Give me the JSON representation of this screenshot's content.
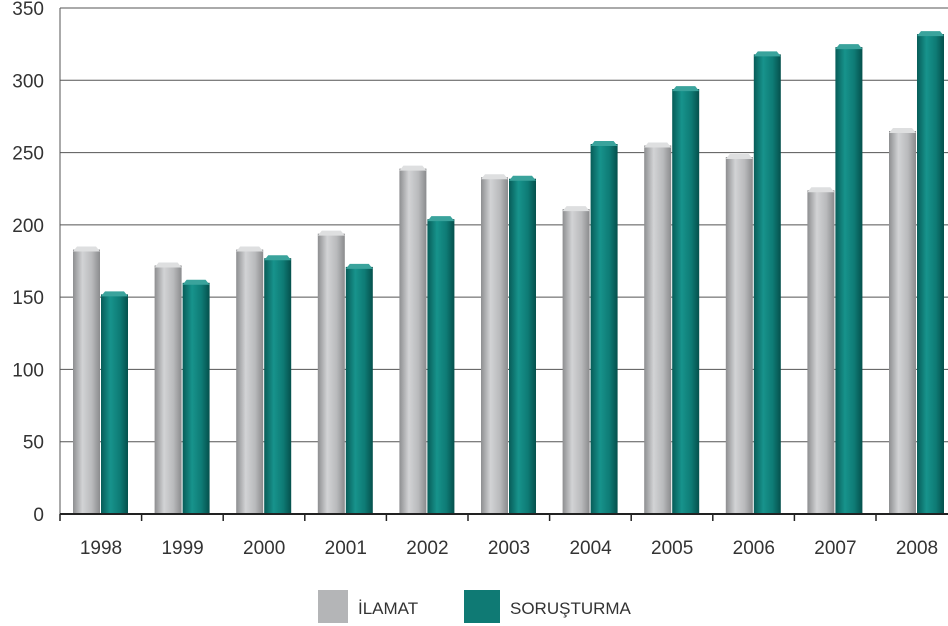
{
  "colors": {
    "ilamat": "#b4b5b7",
    "sorusturma": "#0f7a74",
    "grid": "#555555",
    "axis": "#222222"
  },
  "legend": {
    "placement": "bottom",
    "items": [
      {
        "label": "İLAMAT",
        "color_key": "ilamat"
      },
      {
        "label": "SORUŞTURMA",
        "color_key": "sorusturma"
      }
    ]
  },
  "chart_data": {
    "type": "bar",
    "style": "3d-cylinder",
    "categories": [
      "1998",
      "1999",
      "2000",
      "2001",
      "2002",
      "2003",
      "2004",
      "2005",
      "2006",
      "2007",
      "2008"
    ],
    "series": [
      {
        "name": "İLAMAT",
        "values": [
          185,
          174,
          185,
          196,
          241,
          235,
          213,
          257,
          249,
          226,
          267
        ]
      },
      {
        "name": "SORUŞTURMA",
        "values": [
          154,
          162,
          179,
          173,
          206,
          234,
          258,
          296,
          320,
          325,
          334
        ]
      }
    ],
    "yticks": [
      0,
      50,
      100,
      150,
      200,
      250,
      300,
      350
    ],
    "ylim": [
      0,
      350
    ],
    "grid": true
  }
}
